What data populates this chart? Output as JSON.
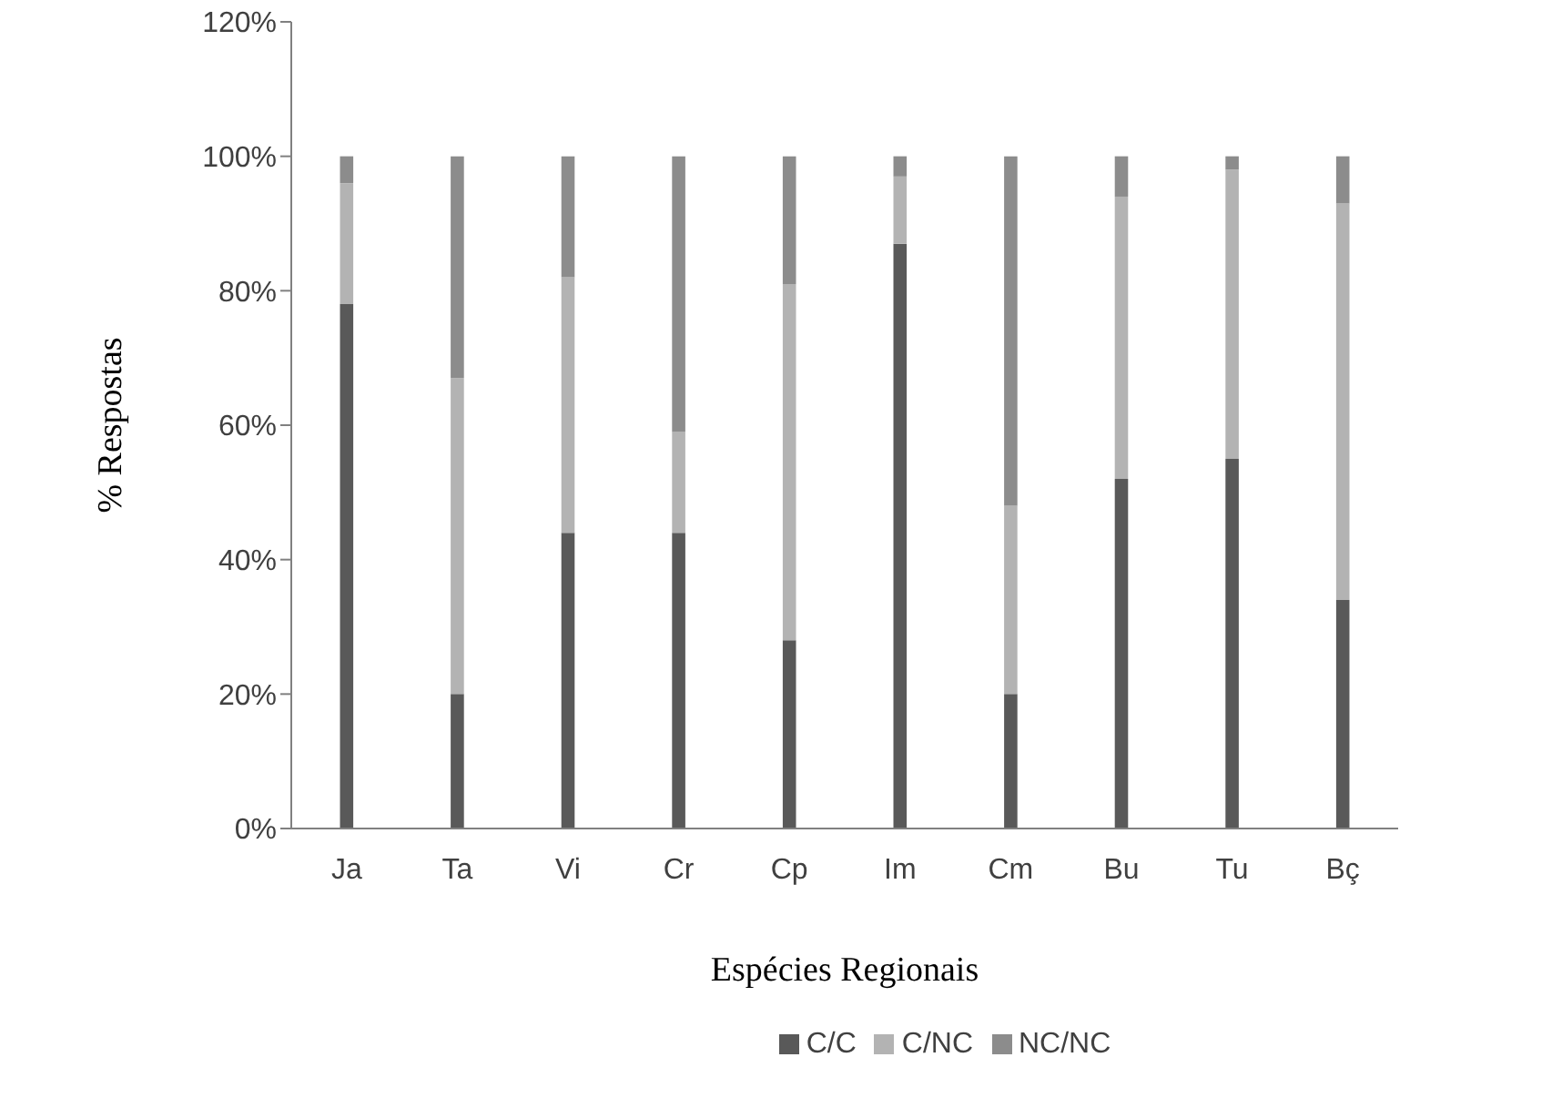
{
  "chart_data": {
    "type": "bar",
    "stacked": true,
    "xlabel": "Espécies Regionais",
    "ylabel": "% Respostas",
    "categories": [
      "Ja",
      "Ta",
      "Vi",
      "Cr",
      "Cp",
      "Im",
      "Cm",
      "Bu",
      "Tu",
      "Bç"
    ],
    "series": [
      {
        "name": "C/C",
        "color": "#595959",
        "values": [
          78,
          20,
          44,
          44,
          28,
          87,
          20,
          52,
          55,
          34
        ]
      },
      {
        "name": "C/NC",
        "color": "#b3b3b3",
        "values": [
          18,
          47,
          38,
          15,
          53,
          10,
          28,
          42,
          43,
          59
        ]
      },
      {
        "name": "NC/NC",
        "color": "#8c8c8c",
        "values": [
          4,
          33,
          18,
          41,
          19,
          3,
          52,
          6,
          2,
          7
        ]
      }
    ],
    "ylim": [
      0,
      120
    ],
    "yticks": [
      {
        "value": 0,
        "label": "0%"
      },
      {
        "value": 20,
        "label": "20%"
      },
      {
        "value": 40,
        "label": "40%"
      },
      {
        "value": 60,
        "label": "60%"
      },
      {
        "value": 80,
        "label": "80%"
      },
      {
        "value": 100,
        "label": "100%"
      },
      {
        "value": 120,
        "label": "120%"
      }
    ],
    "grid": false,
    "legend": "bottom"
  }
}
